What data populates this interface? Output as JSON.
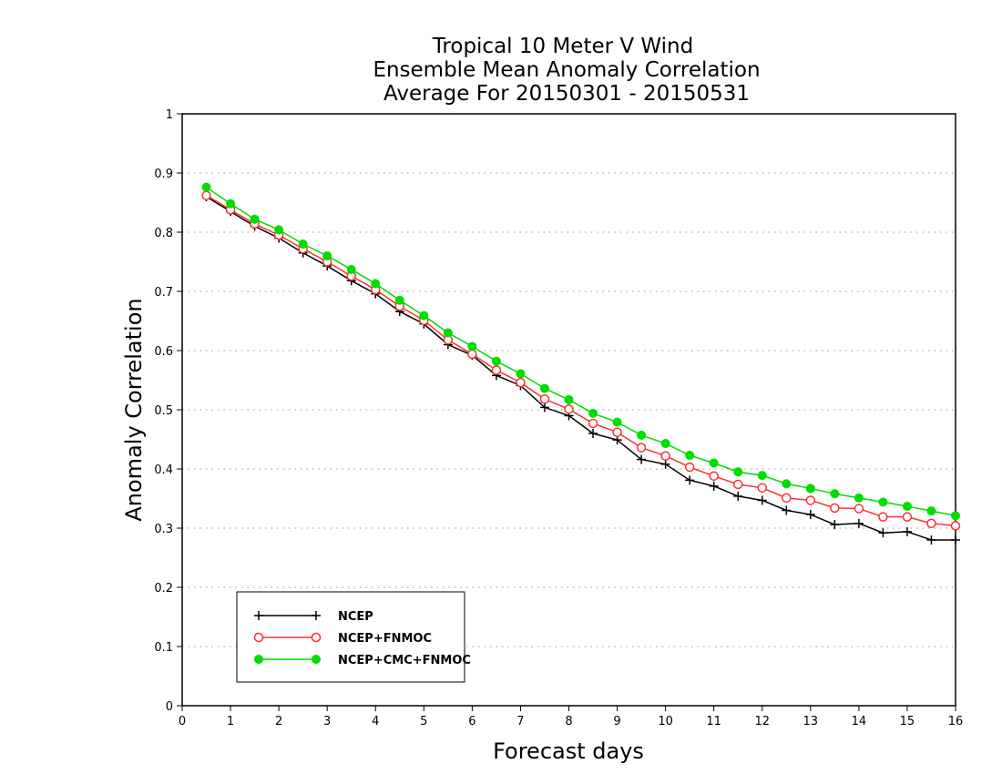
{
  "chart_data": {
    "type": "line",
    "title": [
      "Tropical 10 Meter V Wind",
      "Ensemble Mean Anomaly Correlation",
      "Average For 20150301 - 20150531"
    ],
    "xlabel": "Forecast days",
    "ylabel": "Anomaly Correlation",
    "xlim": [
      0,
      16
    ],
    "ylim": [
      0,
      1
    ],
    "xticks": [
      0,
      1,
      2,
      3,
      4,
      5,
      6,
      7,
      8,
      9,
      10,
      11,
      12,
      13,
      14,
      15,
      16
    ],
    "yticks": [
      0,
      0.1,
      0.2,
      0.3,
      0.4,
      0.5,
      0.6,
      0.7,
      0.8,
      0.9,
      1
    ],
    "grid": "horizontal dotted",
    "legend_position": "bottom-left",
    "x": [
      0.5,
      1,
      1.5,
      2,
      2.5,
      3,
      3.5,
      4,
      4.5,
      5,
      5.5,
      6,
      6.5,
      7,
      7.5,
      8,
      8.5,
      9,
      9.5,
      10,
      10.5,
      11,
      11.5,
      12,
      12.5,
      13,
      13.5,
      14,
      14.5,
      15,
      15.5,
      16
    ],
    "series": [
      {
        "name": "NCEP",
        "color": "#000000",
        "marker": "plus",
        "values": [
          0.86,
          0.835,
          0.81,
          0.79,
          0.765,
          0.743,
          0.718,
          0.696,
          0.666,
          0.645,
          0.61,
          0.592,
          0.558,
          0.541,
          0.504,
          0.49,
          0.46,
          0.449,
          0.416,
          0.408,
          0.381,
          0.371,
          0.354,
          0.347,
          0.33,
          0.323,
          0.306,
          0.308,
          0.292,
          0.294,
          0.28,
          0.28
        ]
      },
      {
        "name": "NCEP+FNMOC",
        "color": "#ff3030",
        "marker": "open-circle",
        "values": [
          0.862,
          0.838,
          0.814,
          0.795,
          0.772,
          0.75,
          0.726,
          0.703,
          0.675,
          0.651,
          0.618,
          0.594,
          0.567,
          0.546,
          0.518,
          0.501,
          0.477,
          0.462,
          0.436,
          0.422,
          0.403,
          0.388,
          0.374,
          0.368,
          0.351,
          0.347,
          0.334,
          0.333,
          0.319,
          0.319,
          0.308,
          0.304
        ]
      },
      {
        "name": "NCEP+CMC+FNMOC",
        "color": "#00dd00",
        "marker": "filled-circle",
        "values": [
          0.876,
          0.848,
          0.822,
          0.804,
          0.78,
          0.76,
          0.737,
          0.713,
          0.685,
          0.659,
          0.63,
          0.607,
          0.582,
          0.561,
          0.536,
          0.517,
          0.494,
          0.479,
          0.457,
          0.443,
          0.423,
          0.41,
          0.395,
          0.389,
          0.375,
          0.367,
          0.358,
          0.351,
          0.344,
          0.337,
          0.329,
          0.321
        ]
      }
    ]
  }
}
